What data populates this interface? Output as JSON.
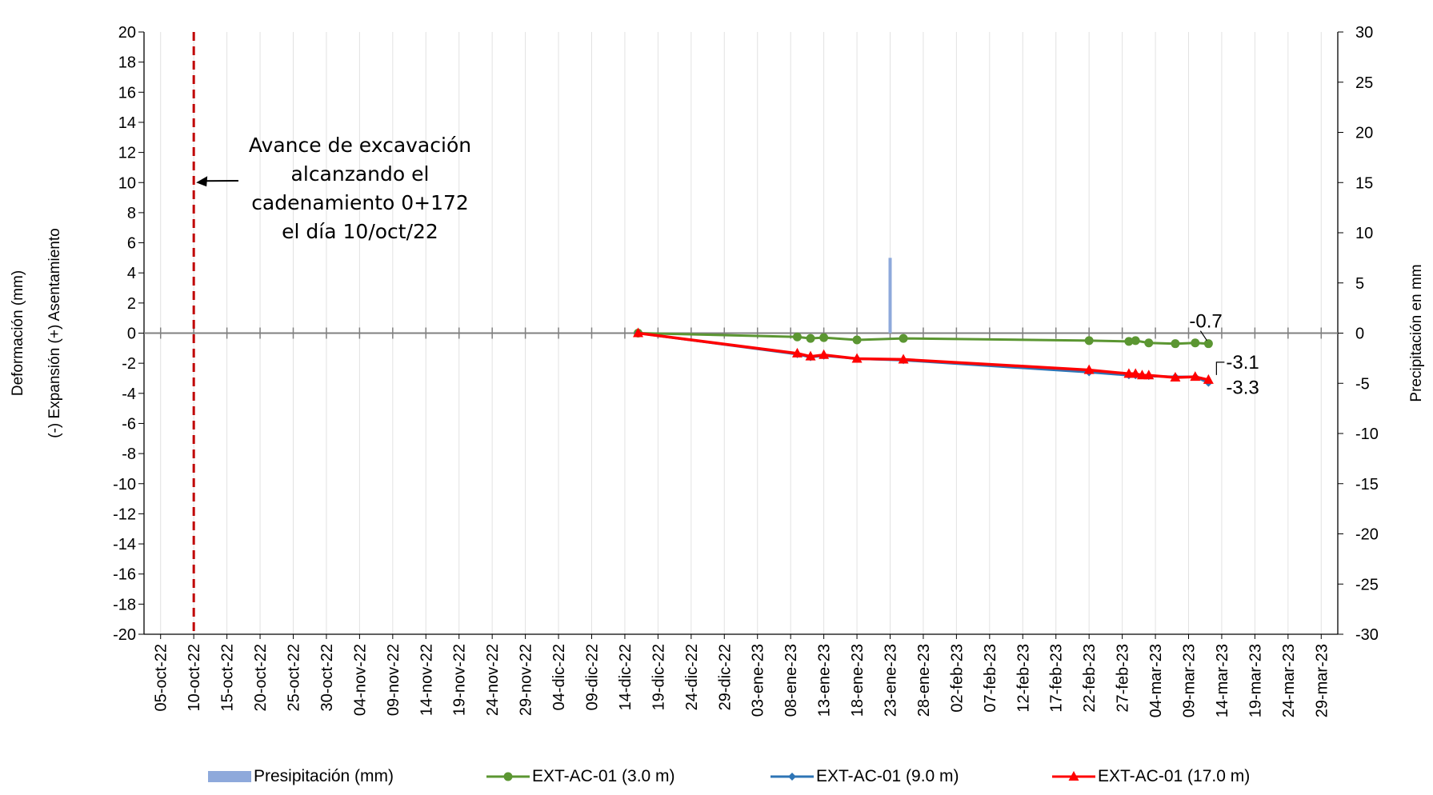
{
  "chart_data": {
    "type": "line",
    "ylabel_lines": [
      "Deformación (mm)",
      "(-) Expansión    (+) Asentamiento"
    ],
    "y2label": "Precipitación en mm",
    "ylim": [
      -20,
      20
    ],
    "y_ticks": [
      20,
      18,
      16,
      14,
      12,
      10,
      8,
      6,
      4,
      2,
      0,
      -2,
      -4,
      -6,
      -8,
      -10,
      -12,
      -14,
      -16,
      -18,
      -20
    ],
    "y2lim": [
      -30,
      30
    ],
    "y2_ticks": [
      30,
      25,
      20,
      15,
      10,
      5,
      0,
      -5,
      -10,
      -15,
      -20,
      -25,
      -30
    ],
    "x_tick_labels": [
      "05-oct-22",
      "10-oct-22",
      "15-oct-22",
      "20-oct-22",
      "25-oct-22",
      "30-oct-22",
      "04-nov-22",
      "09-nov-22",
      "14-nov-22",
      "19-nov-22",
      "24-nov-22",
      "29-nov-22",
      "04-dic-22",
      "09-dic-22",
      "14-dic-22",
      "19-dic-22",
      "24-dic-22",
      "29-dic-22",
      "03-ene-23",
      "08-ene-23",
      "13-ene-23",
      "18-ene-23",
      "23-ene-23",
      "28-ene-23",
      "02-feb-23",
      "07-feb-23",
      "12-feb-23",
      "17-feb-23",
      "22-feb-23",
      "27-feb-23",
      "04-mar-23",
      "09-mar-23",
      "14-mar-23",
      "19-mar-23",
      "24-mar-23",
      "29-mar-23"
    ],
    "grid": true,
    "legend_position": "bottom",
    "excavation_marker": {
      "date": "10-oct-22",
      "color": "#C00000",
      "text_lines": [
        "Avance de excavación",
        "alcanzando el",
        "cadenamiento 0+172",
        "el día 10/oct/22"
      ]
    },
    "precipitation": {
      "name": "Presipitación (mm)",
      "color": "#8EA9DB",
      "bars": [
        {
          "date": "23-ene-23",
          "value": 7.5
        }
      ]
    },
    "series": [
      {
        "name": "EXT-AC-01 (3.0 m)",
        "color": "#5B9632",
        "marker": "circle",
        "points": [
          {
            "date": "16-dic-22",
            "value": 0.0
          },
          {
            "date": "09-ene-23",
            "value": -0.25
          },
          {
            "date": "11-ene-23",
            "value": -0.35
          },
          {
            "date": "13-ene-23",
            "value": -0.3
          },
          {
            "date": "18-ene-23",
            "value": -0.45
          },
          {
            "date": "25-ene-23",
            "value": -0.35
          },
          {
            "date": "22-feb-23",
            "value": -0.5
          },
          {
            "date": "28-feb-23",
            "value": -0.55
          },
          {
            "date": "01-mar-23",
            "value": -0.5
          },
          {
            "date": "03-mar-23",
            "value": -0.65
          },
          {
            "date": "07-mar-23",
            "value": -0.7
          },
          {
            "date": "10-mar-23",
            "value": -0.65
          },
          {
            "date": "12-mar-23",
            "value": -0.7
          }
        ]
      },
      {
        "name": "EXT-AC-01 (9.0 m)",
        "color": "#2E75B6",
        "marker": "diamond",
        "points": [
          {
            "date": "16-dic-22",
            "value": 0.0
          },
          {
            "date": "09-ene-23",
            "value": -1.4
          },
          {
            "date": "11-ene-23",
            "value": -1.6
          },
          {
            "date": "13-ene-23",
            "value": -1.5
          },
          {
            "date": "18-ene-23",
            "value": -1.7
          },
          {
            "date": "25-ene-23",
            "value": -1.8
          },
          {
            "date": "22-feb-23",
            "value": -2.6
          },
          {
            "date": "28-feb-23",
            "value": -2.8
          },
          {
            "date": "01-mar-23",
            "value": -2.8
          },
          {
            "date": "03-mar-23",
            "value": -2.85
          },
          {
            "date": "07-mar-23",
            "value": -2.9
          },
          {
            "date": "10-mar-23",
            "value": -2.9
          },
          {
            "date": "12-mar-23",
            "value": -3.3
          }
        ]
      },
      {
        "name": "EXT-AC-01 (17.0 m)",
        "color": "#FF0000",
        "marker": "triangle",
        "points": [
          {
            "date": "16-dic-22",
            "value": 0.0
          },
          {
            "date": "09-ene-23",
            "value": -1.35
          },
          {
            "date": "11-ene-23",
            "value": -1.55
          },
          {
            "date": "13-ene-23",
            "value": -1.45
          },
          {
            "date": "18-ene-23",
            "value": -1.7
          },
          {
            "date": "25-ene-23",
            "value": -1.75
          },
          {
            "date": "22-feb-23",
            "value": -2.45
          },
          {
            "date": "28-feb-23",
            "value": -2.7
          },
          {
            "date": "01-mar-23",
            "value": -2.7
          },
          {
            "date": "02-mar-23",
            "value": -2.8
          },
          {
            "date": "03-mar-23",
            "value": -2.8
          },
          {
            "date": "07-mar-23",
            "value": -2.95
          },
          {
            "date": "10-mar-23",
            "value": -2.9
          },
          {
            "date": "12-mar-23",
            "value": -3.1
          }
        ]
      }
    ],
    "data_labels": [
      {
        "series": 0,
        "text": "-0.7"
      },
      {
        "series": 2,
        "text": "-3.1"
      },
      {
        "series": 1,
        "text": "-3.3"
      }
    ]
  }
}
